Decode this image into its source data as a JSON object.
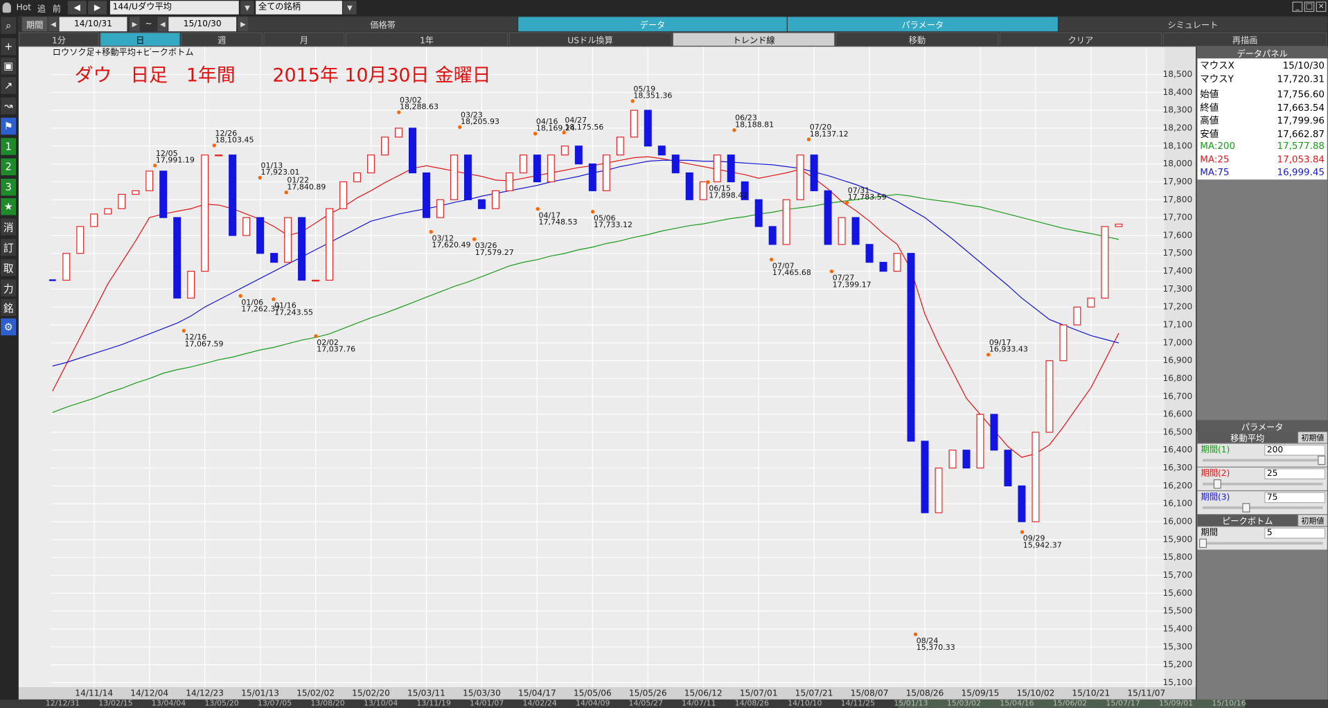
{
  "toolbar": {
    "hot": "Hot",
    "add": "追",
    "prev": "前",
    "symbol": "144/Uダウ平均",
    "universe": "全ての銘柄"
  },
  "period_bar": {
    "label": "期間",
    "from": "14/10/31",
    "sep": "~",
    "to": "15/10/30",
    "tabs": [
      "価格帯",
      "データ",
      "パラメータ",
      "シミュレート"
    ]
  },
  "button_bar": [
    "1分",
    "日",
    "週",
    "月",
    "1年",
    "USドル換算",
    "トレンド線",
    "移動",
    "クリア",
    "再描画"
  ],
  "left_tools": [
    "1",
    "2",
    "3",
    "消",
    "訂",
    "取",
    "力",
    "銘"
  ],
  "data_panel": {
    "title": "データパネル",
    "rows": [
      [
        "マウスX",
        "15/10/30"
      ],
      [
        "マウスY",
        "17,720.31"
      ],
      [
        "始値",
        "17,756.60"
      ],
      [
        "終値",
        "17,663.54"
      ],
      [
        "高値",
        "17,799.96"
      ],
      [
        "安値",
        "17,662.87"
      ]
    ],
    "ma_values": [
      "17,577.88",
      "17,053.84",
      "16,999.45"
    ]
  },
  "parameters": {
    "title": "パラメータ",
    "ma_section": "移動平均",
    "reset": "初期値",
    "ma_rows": [
      [
        "期間(1)",
        "200"
      ],
      [
        "期間(2)",
        "25"
      ],
      [
        "期間(3)",
        "75"
      ]
    ],
    "peak_section": "ピークボトム",
    "peak_rows": [
      [
        "期間",
        "5"
      ]
    ]
  },
  "scrollbar_dates": [
    "12/12/31",
    "13/02/15",
    "13/04/04",
    "13/05/20",
    "13/07/05",
    "13/08/20",
    "13/10/04",
    "13/11/19",
    "14/01/07",
    "14/02/24",
    "14/04/09",
    "14/05/27",
    "14/07/11",
    "14/08/26",
    "14/10/10",
    "14/11/25",
    "15/01/13",
    "15/03/02",
    "15/04/16",
    "15/06/02",
    "15/07/17",
    "15/09/01",
    "15/10/16"
  ],
  "chart_data": {
    "type": "candlestick",
    "title": "ダウ　日足　1年間　　2015年 10月30日 金曜日",
    "subtitle": "ロウソク足+移動平均+ピークボトム",
    "categories": [
      null,
      null,
      null,
      "14/11/14",
      null,
      null,
      null,
      "14/12/04",
      null,
      null,
      null,
      "14/12/23",
      null,
      null,
      null,
      "15/01/13",
      null,
      null,
      null,
      "15/02/02",
      null,
      null,
      null,
      "15/02/20",
      null,
      null,
      null,
      "15/03/11",
      null,
      null,
      null,
      "15/03/30",
      null,
      null,
      null,
      "15/04/17",
      null,
      null,
      null,
      "15/05/06",
      null,
      null,
      null,
      "15/05/26",
      null,
      null,
      null,
      "15/06/12",
      null,
      null,
      null,
      "15/07/01",
      null,
      null,
      null,
      "15/07/21",
      null,
      null,
      null,
      "15/08/07",
      null,
      null,
      null,
      "15/08/26",
      null,
      null,
      null,
      "15/09/15",
      null,
      null,
      null,
      "15/10/02",
      null,
      null,
      null,
      "15/10/21",
      null,
      null,
      null,
      "15/11/07"
    ],
    "values": [
      17350,
      17500,
      17650,
      17720,
      17750,
      17830,
      17850,
      17960,
      17700,
      17250,
      17400,
      18050,
      18050,
      17600,
      17700,
      17500,
      17450,
      17700,
      17350,
      17350,
      17750,
      17900,
      17950,
      18050,
      18150,
      18200,
      17950,
      17700,
      17800,
      18050,
      17800,
      17750,
      17850,
      17950,
      18050,
      17900,
      18050,
      18100,
      18000,
      17850,
      18050,
      18150,
      18300,
      18100,
      18050,
      17950,
      17800,
      17900,
      18050,
      17900,
      17800,
      17650,
      17550,
      17800,
      18050,
      17850,
      17550,
      17700,
      17550,
      17450,
      17400,
      17500,
      16450,
      16050,
      16300,
      16400,
      16300,
      16600,
      16400,
      16200,
      16000,
      16500,
      16900,
      17100,
      17200,
      17250,
      17650,
      17663.54,
      null,
      null
    ],
    "up_color": "#e02828",
    "down_color": "#1414e0",
    "series": [
      {
        "name": "MA:200",
        "color": "#1a9a1a",
        "values": [
          16610,
          16640,
          16665,
          16690,
          16720,
          16745,
          16775,
          16800,
          16830,
          16850,
          16865,
          16885,
          16905,
          16920,
          16940,
          16960,
          16975,
          16995,
          17015,
          17030,
          17050,
          17080,
          17110,
          17140,
          17165,
          17195,
          17225,
          17255,
          17285,
          17315,
          17340,
          17370,
          17400,
          17430,
          17450,
          17465,
          17485,
          17500,
          17520,
          17535,
          17555,
          17570,
          17590,
          17605,
          17625,
          17640,
          17655,
          17665,
          17680,
          17695,
          17705,
          17720,
          17730,
          17745,
          17755,
          17765,
          17780,
          17790,
          17800,
          17810,
          17820,
          17830,
          17820,
          17805,
          17795,
          17785,
          17770,
          17760,
          17740,
          17720,
          17700,
          17680,
          17660,
          17640,
          17625,
          17610,
          17595,
          17577.88,
          null,
          null
        ]
      },
      {
        "name": "MA:25",
        "color": "#e01818",
        "values": [
          16730,
          16880,
          17030,
          17180,
          17330,
          17450,
          17570,
          17700,
          17720,
          17735,
          17750,
          17775,
          17770,
          17750,
          17720,
          17690,
          17650,
          17600,
          17620,
          17670,
          17720,
          17760,
          17810,
          17850,
          17895,
          17935,
          17975,
          17990,
          17975,
          17960,
          17945,
          17930,
          17910,
          17905,
          17920,
          17935,
          17950,
          17965,
          17980,
          17990,
          18005,
          18020,
          18035,
          18040,
          18030,
          18015,
          18000,
          17985,
          17970,
          17955,
          17940,
          17920,
          17935,
          17950,
          17970,
          17920,
          17860,
          17790,
          17740,
          17680,
          17610,
          17550,
          17410,
          17160,
          16990,
          16840,
          16690,
          16600,
          16510,
          16420,
          16360,
          16380,
          16430,
          16530,
          16640,
          16750,
          16900,
          17053.84,
          null,
          null
        ]
      },
      {
        "name": "MA:75",
        "color": "#1818d0",
        "values": [
          16870,
          16890,
          16915,
          16940,
          16965,
          16990,
          17020,
          17050,
          17080,
          17110,
          17150,
          17200,
          17240,
          17280,
          17320,
          17360,
          17400,
          17440,
          17480,
          17520,
          17560,
          17600,
          17640,
          17680,
          17700,
          17720,
          17735,
          17750,
          17765,
          17785,
          17800,
          17820,
          17835,
          17850,
          17865,
          17880,
          17900,
          17915,
          17930,
          17950,
          17965,
          17985,
          18000,
          18015,
          18020,
          18020,
          18020,
          18015,
          18015,
          18010,
          18005,
          18000,
          17995,
          17985,
          17975,
          17955,
          17935,
          17910,
          17885,
          17855,
          17825,
          17790,
          17745,
          17700,
          17640,
          17580,
          17515,
          17450,
          17385,
          17320,
          17250,
          17190,
          17130,
          17100,
          17070,
          17040,
          17020,
          16999.45,
          null,
          null
        ]
      }
    ],
    "peaks": {
      "color": "#ff6600",
      "dates": [
        "12/05",
        "12/16",
        "12/26",
        "01/06",
        "01/13",
        "01/16",
        "01/22",
        "02/02",
        "03/02",
        "03/12",
        "03/23",
        "03/26",
        "04/16",
        "04/17",
        "04/27",
        "05/06",
        "05/19",
        "06/15",
        "06/23",
        "07/07",
        "07/20",
        "07/27",
        "07/31",
        "08/24",
        "09/17",
        "09/29"
      ],
      "values": [
        17991.19,
        17067.59,
        18103.45,
        17262.37,
        17923.01,
        17243.55,
        17840.89,
        17037.76,
        18288.63,
        17620.49,
        18205.93,
        17579.27,
        18169.24,
        17748.53,
        18175.56,
        17733.12,
        18351.36,
        17898.42,
        18188.81,
        17465.68,
        18137.12,
        17399.17,
        17783.59,
        15370.33,
        16933.43,
        15942.37
      ],
      "value_labels": [
        "17,991.19",
        "17,067.59",
        "18,103.45",
        "17,262.37",
        "17,923.01",
        "17,243.55",
        "17,840.89",
        "17,037.76",
        "18,288.63",
        "17,620.49",
        "18,205.93",
        "17,579.27",
        "18,169.24",
        "17,748.53",
        "18,175.56",
        "17,733.12",
        "18,351.36",
        "17,898.42",
        "18,188.81",
        "17,465.68",
        "18,137.12",
        "17,399.17",
        "17,783.59",
        "15,370.33",
        "16,933.43",
        "15,942.37"
      ]
    },
    "ylim": [
      15072,
      18656
    ],
    "yticks": [
      {
        "value": 15100,
        "label": "15,100"
      },
      {
        "value": 15200,
        "label": "15,200"
      },
      {
        "value": 15300,
        "label": "15,300"
      },
      {
        "value": 15400,
        "label": "15,400"
      },
      {
        "value": 15500,
        "label": "15,500"
      },
      {
        "value": 15600,
        "label": "15,600"
      },
      {
        "value": 15700,
        "label": "15,700"
      },
      {
        "value": 15800,
        "label": "15,800"
      },
      {
        "value": 15900,
        "label": "15,900"
      },
      {
        "value": 16000,
        "label": "16,000"
      },
      {
        "value": 16100,
        "label": "16,100"
      },
      {
        "value": 16200,
        "label": "16,200"
      },
      {
        "value": 16300,
        "label": "16,300"
      },
      {
        "value": 16400,
        "label": "16,400"
      },
      {
        "value": 16500,
        "label": "16,500"
      },
      {
        "value": 16600,
        "label": "16,600"
      },
      {
        "value": 16700,
        "label": "16,700"
      },
      {
        "value": 16800,
        "label": "16,800"
      },
      {
        "value": 16900,
        "label": "16,900"
      },
      {
        "value": 17000,
        "label": "17,000"
      },
      {
        "value": 17100,
        "label": "17,100"
      },
      {
        "value": 17200,
        "label": "17,200"
      },
      {
        "value": 17300,
        "label": "17,300"
      },
      {
        "value": 17400,
        "label": "17,400"
      },
      {
        "value": 17500,
        "label": "17,500"
      },
      {
        "value": 17600,
        "label": "17,600"
      },
      {
        "value": 17700,
        "label": "17,700"
      },
      {
        "value": 17800,
        "label": "17,800"
      },
      {
        "value": 17900,
        "label": "17,900"
      },
      {
        "value": 18000,
        "label": "18,000"
      },
      {
        "value": 18100,
        "label": "18,100"
      },
      {
        "value": 18200,
        "label": "18,200"
      },
      {
        "value": 18300,
        "label": "18,300"
      },
      {
        "value": 18400,
        "label": "18,400"
      },
      {
        "value": 18500,
        "label": "18,500"
      }
    ],
    "grid": true
  }
}
